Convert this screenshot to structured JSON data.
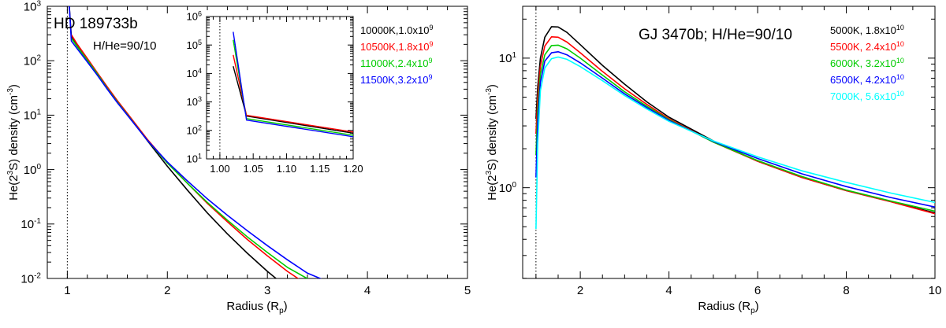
{
  "chart_data": [
    {
      "type": "line",
      "title": "HD 189733b",
      "subtitle": "H/He=90/10",
      "xlabel": "Radius (R",
      "xlabel_sub": "p",
      "xlabel_tail": ")",
      "ylabel_pre": "He(2",
      "ylabel_sup": "3",
      "ylabel_mid": "S) density (cm",
      "ylabel_sup2": "-3",
      "ylabel_tail": ")",
      "xscale": "linear",
      "yscale": "log",
      "xlim": [
        0.8,
        5.0
      ],
      "ylim_log10": [
        -2,
        3
      ],
      "xticks": [
        1,
        2,
        3,
        4,
        5
      ],
      "xtick_labels": [
        "1",
        "2",
        "3",
        "4",
        "5"
      ],
      "yticks_log10": [
        -2,
        -1,
        0,
        1,
        2,
        3
      ],
      "ytick_bases": [
        "10",
        "10",
        "10",
        "10",
        "10",
        "10"
      ],
      "ytick_exps": [
        "-2",
        "-1",
        "0",
        "1",
        "2",
        "3"
      ],
      "reference_line_x": 1.0,
      "legend_position": "top-right",
      "series": [
        {
          "name": "10000K,1.0x10",
          "exp": "9",
          "color": "#000000",
          "points": [
            [
              1.02,
              1000
            ],
            [
              1.04,
              280
            ],
            [
              1.1,
              185
            ],
            [
              1.2,
              105
            ],
            [
              1.3,
              58
            ],
            [
              1.4,
              32
            ],
            [
              1.5,
              18
            ],
            [
              1.6,
              10.5
            ],
            [
              1.8,
              3.4
            ],
            [
              2.0,
              1.15
            ],
            [
              2.2,
              0.42
            ],
            [
              2.4,
              0.16
            ],
            [
              2.6,
              0.066
            ],
            [
              2.8,
              0.029
            ],
            [
              3.0,
              0.0135
            ],
            [
              3.1,
              0.0095
            ]
          ]
        },
        {
          "name": "10500K,1.8x10",
          "exp": "9",
          "color": "#ff0000",
          "points": [
            [
              1.04,
              300
            ],
            [
              1.1,
              200
            ],
            [
              1.2,
              110
            ],
            [
              1.3,
              60
            ],
            [
              1.4,
              33
            ],
            [
              1.5,
              18.5
            ],
            [
              1.6,
              10.8
            ],
            [
              1.8,
              3.6
            ],
            [
              2.0,
              1.35
            ],
            [
              2.2,
              0.56
            ],
            [
              2.4,
              0.24
            ],
            [
              2.6,
              0.11
            ],
            [
              2.8,
              0.052
            ],
            [
              3.0,
              0.026
            ],
            [
              3.2,
              0.0135
            ],
            [
              3.35,
              0.0088
            ]
          ]
        },
        {
          "name": "11000K,2.4x10",
          "exp": "9",
          "color": "#00cc00",
          "points": [
            [
              1.04,
              260
            ],
            [
              1.1,
              180
            ],
            [
              1.2,
              102
            ],
            [
              1.3,
              57
            ],
            [
              1.4,
              31
            ],
            [
              1.5,
              17.5
            ],
            [
              1.6,
              10.2
            ],
            [
              1.8,
              3.45
            ],
            [
              2.0,
              1.32
            ],
            [
              2.2,
              0.56
            ],
            [
              2.4,
              0.25
            ],
            [
              2.6,
              0.118
            ],
            [
              2.8,
              0.058
            ],
            [
              3.0,
              0.03
            ],
            [
              3.2,
              0.016
            ],
            [
              3.45,
              0.0088
            ]
          ]
        },
        {
          "name": "11500K,3.2x10",
          "exp": "9",
          "color": "#0000ff",
          "points": [
            [
              1.02,
              1000
            ],
            [
              1.04,
              230
            ],
            [
              1.1,
              165
            ],
            [
              1.2,
              95
            ],
            [
              1.3,
              54
            ],
            [
              1.4,
              30
            ],
            [
              1.5,
              17
            ],
            [
              1.6,
              10
            ],
            [
              1.8,
              3.45
            ],
            [
              2.0,
              1.38
            ],
            [
              2.2,
              0.62
            ],
            [
              2.4,
              0.29
            ],
            [
              2.6,
              0.145
            ],
            [
              2.8,
              0.075
            ],
            [
              3.0,
              0.04
            ],
            [
              3.2,
              0.022
            ],
            [
              3.4,
              0.0125
            ],
            [
              3.6,
              0.0088
            ]
          ]
        }
      ]
    },
    {
      "type": "line",
      "inset_of": "HD 189733b",
      "xscale": "linear",
      "yscale": "log",
      "xlim": [
        0.98,
        1.2
      ],
      "ylim_log10": [
        1,
        6
      ],
      "xticks": [
        1.0,
        1.05,
        1.1,
        1.15,
        1.2
      ],
      "xtick_labels": [
        "1.00",
        "1.05",
        "1.10",
        "1.15",
        "1.20"
      ],
      "yticks_log10": [
        1,
        2,
        3,
        4,
        5,
        6
      ],
      "ytick_bases": [
        "10",
        "10",
        "10",
        "10",
        "10",
        "10"
      ],
      "ytick_exps": [
        "1",
        "2",
        "3",
        "4",
        "5",
        "6"
      ],
      "reference_line_x": 1.0,
      "series": [
        {
          "name": "10000K",
          "color": "#000000",
          "points": [
            [
              1.02,
              18000
            ],
            [
              1.04,
              320
            ],
            [
              1.2,
              80
            ]
          ]
        },
        {
          "name": "10500K",
          "color": "#ff0000",
          "points": [
            [
              1.02,
              45000
            ],
            [
              1.04,
              340
            ],
            [
              1.2,
              88
            ]
          ]
        },
        {
          "name": "11000K",
          "color": "#00cc00",
          "points": [
            [
              1.02,
              150000
            ],
            [
              1.04,
              260
            ],
            [
              1.2,
              68
            ]
          ]
        },
        {
          "name": "11500K",
          "color": "#0000ff",
          "points": [
            [
              1.02,
              290000
            ],
            [
              1.04,
              230
            ],
            [
              1.2,
              60
            ]
          ]
        }
      ]
    },
    {
      "type": "line",
      "title": "GJ 3470b; H/He=90/10",
      "xlabel": "Radius (R",
      "xlabel_sub": "p",
      "xlabel_tail": ")",
      "ylabel_pre": "He(2",
      "ylabel_sup": "3",
      "ylabel_mid": "S) density (cm",
      "ylabel_sup2": "-3",
      "ylabel_tail": ")",
      "xscale": "linear",
      "yscale": "log",
      "xlim": [
        0.7,
        10.0
      ],
      "ylim_log10": [
        -0.7,
        1.4
      ],
      "xticks": [
        2,
        4,
        6,
        8,
        10
      ],
      "xtick_labels": [
        "2",
        "4",
        "6",
        "8",
        "10"
      ],
      "yticks_log10": [
        0,
        1
      ],
      "ytick_bases": [
        "10",
        "10"
      ],
      "ytick_exps": [
        "0",
        "1"
      ],
      "reference_line_x": 1.0,
      "legend_position": "top-right",
      "series": [
        {
          "name": "5000K, 1.8x10",
          "exp": "10",
          "color": "#000000",
          "points": [
            [
              1.0,
              3.4
            ],
            [
              1.04,
              6
            ],
            [
              1.1,
              10
            ],
            [
              1.2,
              14.5
            ],
            [
              1.35,
              17.5
            ],
            [
              1.5,
              17.4
            ],
            [
              1.7,
              15.8
            ],
            [
              2.0,
              12.7
            ],
            [
              2.5,
              8.8
            ],
            [
              3.0,
              6.3
            ],
            [
              3.5,
              4.6
            ],
            [
              4.0,
              3.5
            ],
            [
              5.0,
              2.3
            ],
            [
              6.0,
              1.6
            ],
            [
              7.0,
              1.2
            ],
            [
              8.0,
              0.95
            ],
            [
              9.0,
              0.78
            ],
            [
              10.0,
              0.64
            ]
          ]
        },
        {
          "name": "5500K, 2.4x10",
          "exp": "10",
          "color": "#ff0000",
          "points": [
            [
              1.0,
              2.6
            ],
            [
              1.04,
              5
            ],
            [
              1.1,
              8.7
            ],
            [
              1.2,
              12.4
            ],
            [
              1.35,
              14.6
            ],
            [
              1.5,
              14.5
            ],
            [
              1.7,
              13.3
            ],
            [
              2.0,
              11.0
            ],
            [
              2.5,
              7.9
            ],
            [
              3.0,
              5.8
            ],
            [
              3.5,
              4.4
            ],
            [
              4.0,
              3.4
            ],
            [
              5.0,
              2.25
            ],
            [
              6.0,
              1.6
            ],
            [
              7.0,
              1.2
            ],
            [
              8.0,
              0.95
            ],
            [
              9.0,
              0.78
            ],
            [
              10.0,
              0.63
            ]
          ]
        },
        {
          "name": "6000K, 3.2x10",
          "exp": "10",
          "color": "#00cc00",
          "points": [
            [
              1.0,
              1.8
            ],
            [
              1.04,
              4
            ],
            [
              1.1,
              7.5
            ],
            [
              1.2,
              10.6
            ],
            [
              1.35,
              12.5
            ],
            [
              1.5,
              12.6
            ],
            [
              1.7,
              11.8
            ],
            [
              2.0,
              10.0
            ],
            [
              2.5,
              7.4
            ],
            [
              3.0,
              5.5
            ],
            [
              3.5,
              4.25
            ],
            [
              4.0,
              3.35
            ],
            [
              5.0,
              2.25
            ],
            [
              6.0,
              1.62
            ],
            [
              7.0,
              1.22
            ],
            [
              8.0,
              0.96
            ],
            [
              9.0,
              0.79
            ],
            [
              10.0,
              0.66
            ]
          ]
        },
        {
          "name": "6500K, 4.2x10",
          "exp": "10",
          "color": "#0000ff",
          "points": [
            [
              1.0,
              1.2
            ],
            [
              1.04,
              3.2
            ],
            [
              1.1,
              6.5
            ],
            [
              1.2,
              9.5
            ],
            [
              1.35,
              11.0
            ],
            [
              1.5,
              11.2
            ],
            [
              1.7,
              10.6
            ],
            [
              2.0,
              9.2
            ],
            [
              2.5,
              7.0
            ],
            [
              3.0,
              5.3
            ],
            [
              3.5,
              4.15
            ],
            [
              4.0,
              3.3
            ],
            [
              5.0,
              2.28
            ],
            [
              6.0,
              1.68
            ],
            [
              7.0,
              1.28
            ],
            [
              8.0,
              1.02
            ],
            [
              9.0,
              0.84
            ],
            [
              10.0,
              0.71
            ]
          ]
        },
        {
          "name": "7000K, 5.6x10",
          "exp": "10",
          "color": "#00ffff",
          "points": [
            [
              1.0,
              0.48
            ],
            [
              1.04,
              2.2
            ],
            [
              1.1,
              5.6
            ],
            [
              1.2,
              8.4
            ],
            [
              1.35,
              9.9
            ],
            [
              1.5,
              10.2
            ],
            [
              1.7,
              9.8
            ],
            [
              2.0,
              8.6
            ],
            [
              2.5,
              6.7
            ],
            [
              3.0,
              5.15
            ],
            [
              3.5,
              4.05
            ],
            [
              4.0,
              3.25
            ],
            [
              5.0,
              2.3
            ],
            [
              6.0,
              1.73
            ],
            [
              7.0,
              1.35
            ],
            [
              8.0,
              1.1
            ],
            [
              9.0,
              0.91
            ],
            [
              10.0,
              0.77
            ]
          ]
        }
      ]
    }
  ]
}
